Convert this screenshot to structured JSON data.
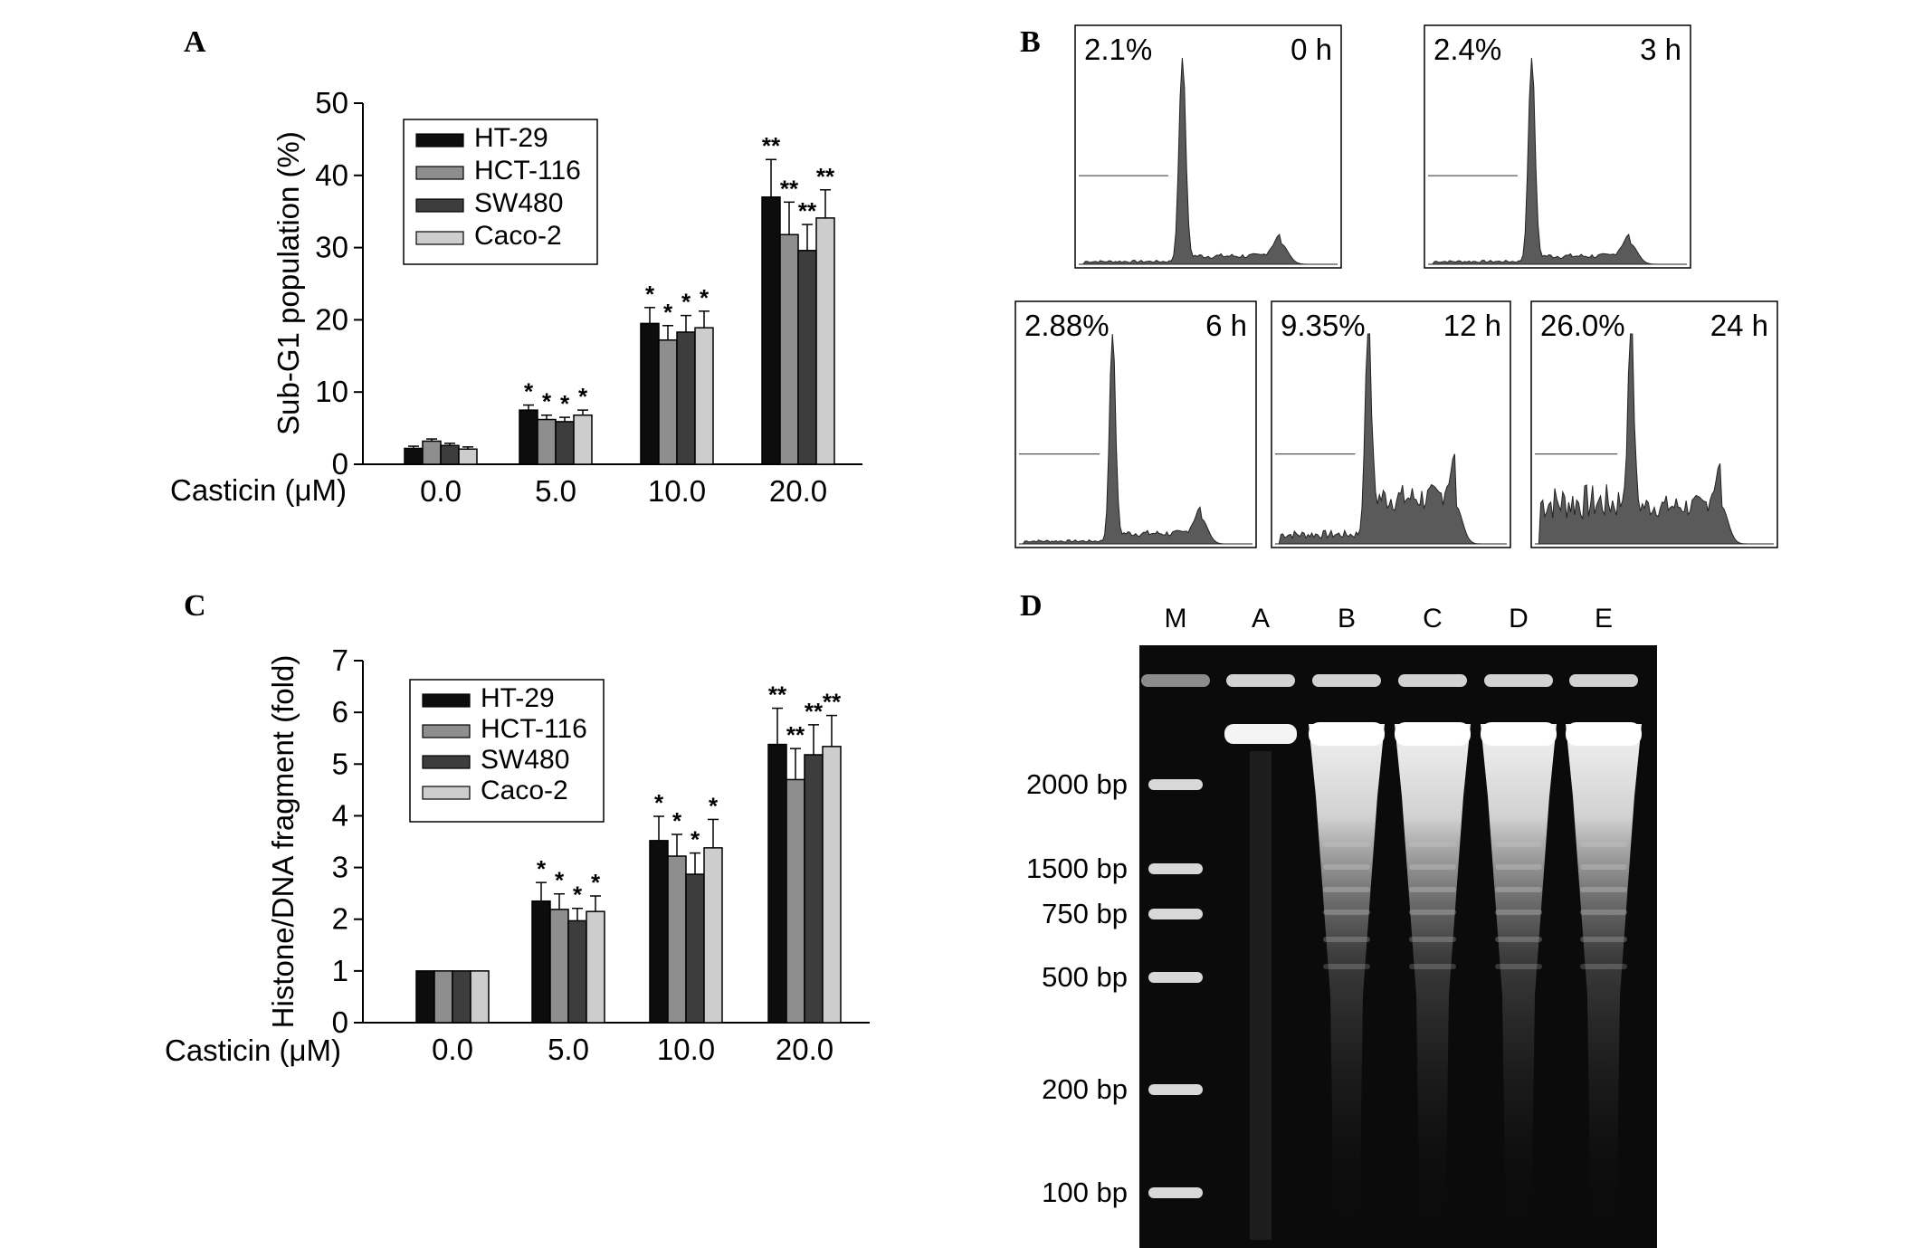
{
  "panel_labels": {
    "a": "A",
    "b": "B",
    "c": "C",
    "d": "D"
  },
  "colors": {
    "series": [
      "#0d0d0d",
      "#8e8e8e",
      "#3d3d3d",
      "#cdcdcd"
    ],
    "histogram_fill": "#5a5a5a",
    "gel_background": "#0b0b0b"
  },
  "chart_data": [
    {
      "panel": "A",
      "type": "bar",
      "categories": [
        "0.0",
        "5.0",
        "10.0",
        "20.0"
      ],
      "xlabel": "Casticin (μM)",
      "ylabel": "Sub-G1 population (%)",
      "ylim": [
        0,
        50
      ],
      "yticks": [
        "0",
        "10",
        "20",
        "30",
        "40",
        "50"
      ],
      "legend_position": "top-left",
      "series": [
        {
          "name": "HT-29",
          "values": [
            2.2,
            7.5,
            19.5,
            37.0
          ],
          "errors": [
            0.3,
            0.7,
            2.2,
            5.2
          ],
          "marks": [
            "",
            "*",
            "*",
            "**"
          ]
        },
        {
          "name": "HCT-116",
          "values": [
            3.2,
            6.2,
            17.2,
            31.8
          ],
          "errors": [
            0.3,
            0.6,
            2.0,
            4.5
          ],
          "marks": [
            "",
            "*",
            "*",
            "**"
          ]
        },
        {
          "name": "SW480",
          "values": [
            2.6,
            5.9,
            18.3,
            29.6
          ],
          "errors": [
            0.3,
            0.6,
            2.3,
            3.6
          ],
          "marks": [
            "",
            "*",
            "*",
            "**"
          ]
        },
        {
          "name": "Caco-2",
          "values": [
            2.1,
            6.8,
            18.9,
            34.1
          ],
          "errors": [
            0.3,
            0.7,
            2.3,
            3.9
          ],
          "marks": [
            "",
            "*",
            "*",
            "**"
          ]
        }
      ]
    },
    {
      "panel": "C",
      "type": "bar",
      "categories": [
        "0.0",
        "5.0",
        "10.0",
        "20.0"
      ],
      "xlabel": "Casticin (μM)",
      "ylabel": "Histone/DNA fragment (fold)",
      "ylim": [
        0,
        7
      ],
      "yticks": [
        "0",
        "1",
        "2",
        "3",
        "4",
        "5",
        "6",
        "7"
      ],
      "legend_position": "top-left",
      "series": [
        {
          "name": "HT-29",
          "values": [
            1.0,
            2.35,
            3.52,
            5.38
          ],
          "errors": [
            0,
            0.36,
            0.47,
            0.7
          ],
          "marks": [
            "",
            "*",
            "*",
            "**"
          ]
        },
        {
          "name": "HCT-116",
          "values": [
            1.0,
            2.19,
            3.22,
            4.7
          ],
          "errors": [
            0,
            0.3,
            0.42,
            0.6
          ],
          "marks": [
            "",
            "*",
            "*",
            "**"
          ]
        },
        {
          "name": "SW480",
          "values": [
            1.0,
            1.97,
            2.87,
            5.18
          ],
          "errors": [
            0,
            0.24,
            0.41,
            0.58
          ],
          "marks": [
            "",
            "*",
            "*",
            "**"
          ]
        },
        {
          "name": "Caco-2",
          "values": [
            1.0,
            2.15,
            3.38,
            5.34
          ],
          "errors": [
            0,
            0.3,
            0.55,
            0.6
          ],
          "marks": [
            "",
            "*",
            "*",
            "**"
          ]
        }
      ]
    }
  ],
  "flow_panels": [
    {
      "percent": "2.1%",
      "time": "0 h",
      "profile": "early"
    },
    {
      "percent": "2.4%",
      "time": "3 h",
      "profile": "early"
    },
    {
      "percent": "2.88%",
      "time": "6 h",
      "profile": "mid"
    },
    {
      "percent": "9.35%",
      "time": "12 h",
      "profile": "late"
    },
    {
      "percent": "26.0%",
      "time": "24 h",
      "profile": "latest"
    }
  ],
  "gel": {
    "lanes": [
      "M",
      "A",
      "B",
      "C",
      "D",
      "E"
    ],
    "markers": [
      "2000 bp",
      "1500 bp",
      "750 bp",
      "500 bp",
      "200 bp",
      "100 bp"
    ]
  }
}
